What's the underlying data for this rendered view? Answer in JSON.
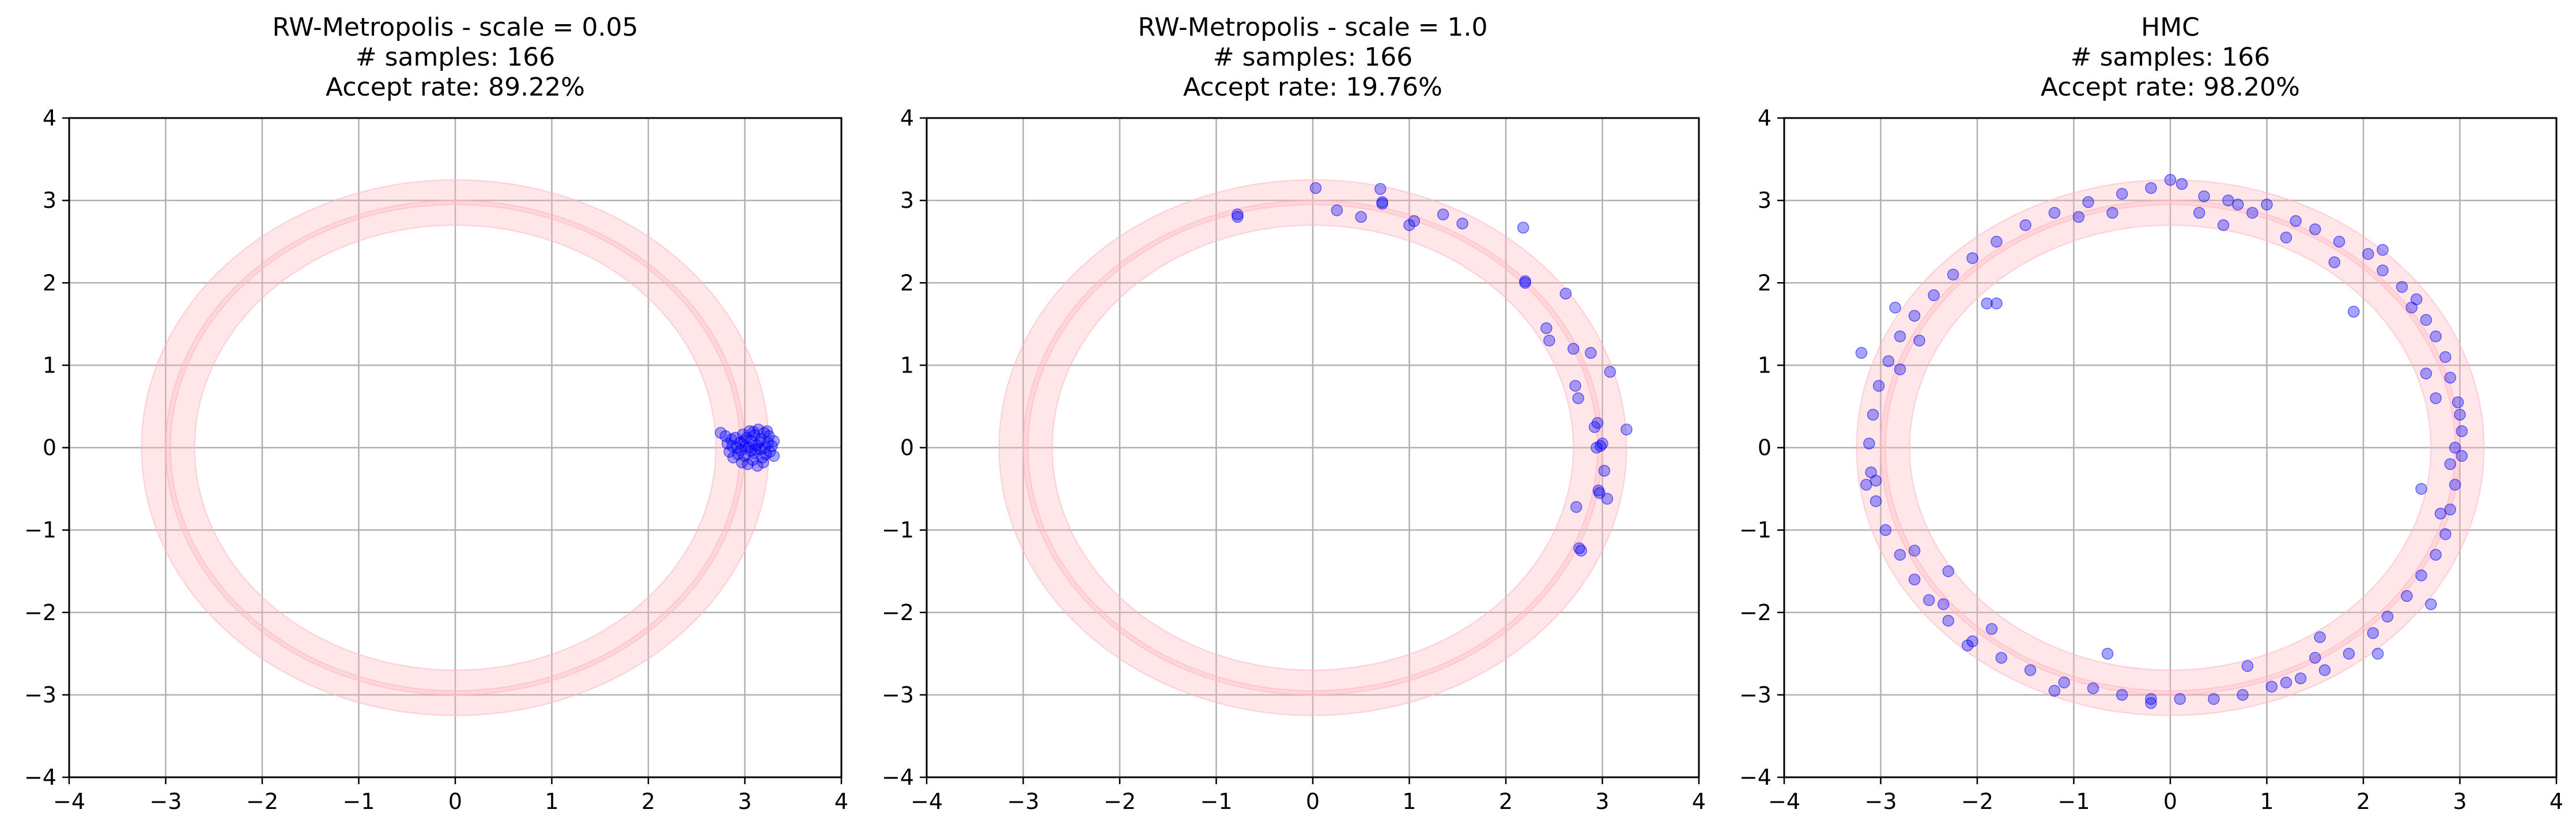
{
  "figure": {
    "background": "#ffffff"
  },
  "style": {
    "ring_color": "#ffb6c1",
    "ring_alpha": 0.35,
    "point_color": "#0000ff",
    "point_alpha": 0.35,
    "grid_color": "#b0b0b0",
    "axis_color": "#000000"
  },
  "chart_data": [
    {
      "type": "scatter",
      "title_lines": [
        "RW-Metropolis - scale = 0.05",
        "# samples: 166",
        "Accept rate: 89.22%"
      ],
      "xlim": [
        -4,
        4
      ],
      "ylim": [
        -4,
        4
      ],
      "xticks": [
        -4,
        -3,
        -2,
        -1,
        0,
        1,
        2,
        3,
        4
      ],
      "yticks": [
        -4,
        -3,
        -2,
        -1,
        0,
        1,
        2,
        3,
        4
      ],
      "grid": true,
      "background_rings": {
        "center": [
          0,
          0
        ],
        "radii": [
          2.85,
          3.1
        ],
        "band_width": 0.3
      },
      "points": [
        [
          2.75,
          0.18
        ],
        [
          2.8,
          0.14
        ],
        [
          2.82,
          0.05
        ],
        [
          2.84,
          -0.05
        ],
        [
          2.86,
          0.1
        ],
        [
          2.88,
          -0.12
        ],
        [
          2.9,
          0.12
        ],
        [
          2.92,
          0.0
        ],
        [
          2.93,
          -0.08
        ],
        [
          2.95,
          0.06
        ],
        [
          2.97,
          -0.18
        ],
        [
          2.98,
          0.16
        ],
        [
          3.0,
          0.02
        ],
        [
          3.0,
          -0.1
        ],
        [
          3.02,
          0.12
        ],
        [
          3.03,
          -0.2
        ],
        [
          3.05,
          0.2
        ],
        [
          3.06,
          -0.04
        ],
        [
          3.07,
          0.08
        ],
        [
          3.08,
          -0.15
        ],
        [
          3.1,
          0.15
        ],
        [
          3.1,
          -0.07
        ],
        [
          3.12,
          0.03
        ],
        [
          3.13,
          -0.22
        ],
        [
          3.14,
          0.22
        ],
        [
          3.16,
          -0.02
        ],
        [
          3.17,
          0.1
        ],
        [
          3.18,
          -0.12
        ],
        [
          3.2,
          0.18
        ],
        [
          3.21,
          0.0
        ],
        [
          3.22,
          -0.08
        ],
        [
          3.24,
          0.06
        ],
        [
          3.25,
          0.14
        ],
        [
          3.26,
          -0.05
        ],
        [
          3.28,
          0.02
        ],
        [
          3.3,
          -0.1
        ],
        [
          3.3,
          0.08
        ],
        [
          3.04,
          0.0
        ],
        [
          2.99,
          0.08
        ],
        [
          3.11,
          -0.02
        ],
        [
          3.15,
          0.07
        ],
        [
          2.96,
          -0.03
        ],
        [
          3.19,
          -0.18
        ],
        [
          3.23,
          0.2
        ],
        [
          2.87,
          0.02
        ],
        [
          3.09,
          0.19
        ]
      ]
    },
    {
      "type": "scatter",
      "title_lines": [
        "RW-Metropolis - scale = 1.0",
        "# samples: 166",
        "Accept rate: 19.76%"
      ],
      "xlim": [
        -4,
        4
      ],
      "ylim": [
        -4,
        4
      ],
      "xticks": [
        -4,
        -3,
        -2,
        -1,
        0,
        1,
        2,
        3,
        4
      ],
      "yticks": [
        -4,
        -3,
        -2,
        -1,
        0,
        1,
        2,
        3,
        4
      ],
      "grid": true,
      "background_rings": {
        "center": [
          0,
          0
        ],
        "radii": [
          2.85,
          3.1
        ],
        "band_width": 0.3
      },
      "points": [
        [
          -0.78,
          2.8
        ],
        [
          -0.78,
          2.83
        ],
        [
          0.03,
          3.15
        ],
        [
          0.25,
          2.88
        ],
        [
          0.5,
          2.8
        ],
        [
          0.7,
          3.14
        ],
        [
          0.72,
          2.98
        ],
        [
          0.72,
          2.96
        ],
        [
          1.0,
          2.7
        ],
        [
          1.05,
          2.75
        ],
        [
          1.35,
          2.83
        ],
        [
          1.55,
          2.72
        ],
        [
          2.18,
          2.67
        ],
        [
          2.2,
          2.02
        ],
        [
          2.2,
          2.0
        ],
        [
          2.42,
          1.45
        ],
        [
          2.45,
          1.3
        ],
        [
          2.62,
          1.87
        ],
        [
          2.7,
          1.2
        ],
        [
          2.72,
          0.75
        ],
        [
          2.75,
          0.6
        ],
        [
          2.88,
          1.15
        ],
        [
          3.08,
          0.92
        ],
        [
          2.73,
          -0.72
        ],
        [
          2.76,
          -1.22
        ],
        [
          2.78,
          -1.25
        ],
        [
          2.92,
          0.25
        ],
        [
          2.94,
          0.0
        ],
        [
          2.96,
          -0.52
        ],
        [
          2.97,
          -0.55
        ],
        [
          3.0,
          0.05
        ],
        [
          3.02,
          -0.28
        ],
        [
          3.05,
          -0.62
        ],
        [
          3.25,
          0.22
        ],
        [
          2.95,
          0.3
        ],
        [
          2.98,
          0.02
        ]
      ]
    },
    {
      "type": "scatter",
      "title_lines": [
        "HMC",
        "# samples: 166",
        "Accept rate: 98.20%"
      ],
      "xlim": [
        -4,
        4
      ],
      "ylim": [
        -4,
        4
      ],
      "xticks": [
        -4,
        -3,
        -2,
        -1,
        0,
        1,
        2,
        3,
        4
      ],
      "yticks": [
        -4,
        -3,
        -2,
        -1,
        0,
        1,
        2,
        3,
        4
      ],
      "grid": true,
      "background_rings": {
        "center": [
          0,
          0
        ],
        "radii": [
          2.85,
          3.1
        ],
        "band_width": 0.3
      },
      "points": [
        [
          0.0,
          3.25
        ],
        [
          0.12,
          3.2
        ],
        [
          0.35,
          3.05
        ],
        [
          0.6,
          3.0
        ],
        [
          0.7,
          2.95
        ],
        [
          1.0,
          2.95
        ],
        [
          1.3,
          2.75
        ],
        [
          1.5,
          2.65
        ],
        [
          1.75,
          2.5
        ],
        [
          2.05,
          2.35
        ],
        [
          2.2,
          2.15
        ],
        [
          2.4,
          1.95
        ],
        [
          2.55,
          1.8
        ],
        [
          2.65,
          1.55
        ],
        [
          2.75,
          1.35
        ],
        [
          2.85,
          1.1
        ],
        [
          2.9,
          0.85
        ],
        [
          2.98,
          0.55
        ],
        [
          3.02,
          0.2
        ],
        [
          3.02,
          -0.1
        ],
        [
          2.95,
          -0.45
        ],
        [
          2.9,
          -0.75
        ],
        [
          2.85,
          -1.05
        ],
        [
          2.75,
          -1.3
        ],
        [
          2.6,
          -1.55
        ],
        [
          2.45,
          -1.8
        ],
        [
          2.25,
          -2.05
        ],
        [
          2.1,
          -2.25
        ],
        [
          1.85,
          -2.5
        ],
        [
          1.6,
          -2.7
        ],
        [
          1.35,
          -2.8
        ],
        [
          1.05,
          -2.9
        ],
        [
          0.75,
          -3.0
        ],
        [
          0.45,
          -3.05
        ],
        [
          0.1,
          -3.05
        ],
        [
          -0.2,
          -3.05
        ],
        [
          -0.5,
          -3.0
        ],
        [
          -0.8,
          -2.92
        ],
        [
          -1.1,
          -2.85
        ],
        [
          -1.45,
          -2.7
        ],
        [
          -1.75,
          -2.55
        ],
        [
          -2.05,
          -2.35
        ],
        [
          -2.3,
          -2.1
        ],
        [
          -2.5,
          -1.85
        ],
        [
          -2.65,
          -1.6
        ],
        [
          -2.8,
          -1.3
        ],
        [
          -2.95,
          -1.0
        ],
        [
          -3.05,
          -0.65
        ],
        [
          -3.1,
          -0.3
        ],
        [
          -3.12,
          0.05
        ],
        [
          -3.08,
          0.4
        ],
        [
          -3.02,
          0.75
        ],
        [
          -2.92,
          1.05
        ],
        [
          -2.8,
          1.35
        ],
        [
          -2.65,
          1.6
        ],
        [
          -2.45,
          1.85
        ],
        [
          -2.25,
          2.1
        ],
        [
          -2.05,
          2.3
        ],
        [
          -1.8,
          2.5
        ],
        [
          -1.5,
          2.7
        ],
        [
          -1.2,
          2.85
        ],
        [
          -0.85,
          2.98
        ],
        [
          -0.5,
          3.08
        ],
        [
          -0.2,
          3.15
        ],
        [
          0.55,
          2.7
        ],
        [
          1.9,
          1.65
        ],
        [
          2.65,
          0.9
        ],
        [
          2.6,
          -0.5
        ],
        [
          2.7,
          -1.9
        ],
        [
          1.55,
          -2.3
        ],
        [
          1.2,
          -2.85
        ],
        [
          -0.65,
          -2.5
        ],
        [
          -1.8,
          1.75
        ],
        [
          -1.9,
          1.75
        ],
        [
          -2.8,
          0.95
        ],
        [
          -3.05,
          -0.4
        ],
        [
          -2.65,
          -1.25
        ],
        [
          -2.3,
          -1.5
        ],
        [
          -0.95,
          2.8
        ],
        [
          0.3,
          2.85
        ],
        [
          2.2,
          2.4
        ],
        [
          2.5,
          1.7
        ],
        [
          2.75,
          0.6
        ],
        [
          2.9,
          -0.2
        ],
        [
          2.8,
          -0.8
        ],
        [
          2.15,
          -2.5
        ],
        [
          1.5,
          -2.55
        ],
        [
          0.8,
          -2.65
        ],
        [
          -0.2,
          -3.1
        ],
        [
          -1.2,
          -2.95
        ],
        [
          -2.35,
          -1.9
        ],
        [
          -2.85,
          1.7
        ],
        [
          -2.6,
          1.3
        ],
        [
          -0.6,
          2.85
        ],
        [
          0.85,
          2.85
        ],
        [
          1.2,
          2.55
        ],
        [
          1.7,
          2.25
        ],
        [
          3.0,
          0.4
        ],
        [
          2.95,
          0.0
        ],
        [
          -1.85,
          -2.2
        ],
        [
          -2.1,
          -2.4
        ],
        [
          -3.2,
          1.15
        ],
        [
          -3.15,
          -0.45
        ]
      ]
    }
  ]
}
